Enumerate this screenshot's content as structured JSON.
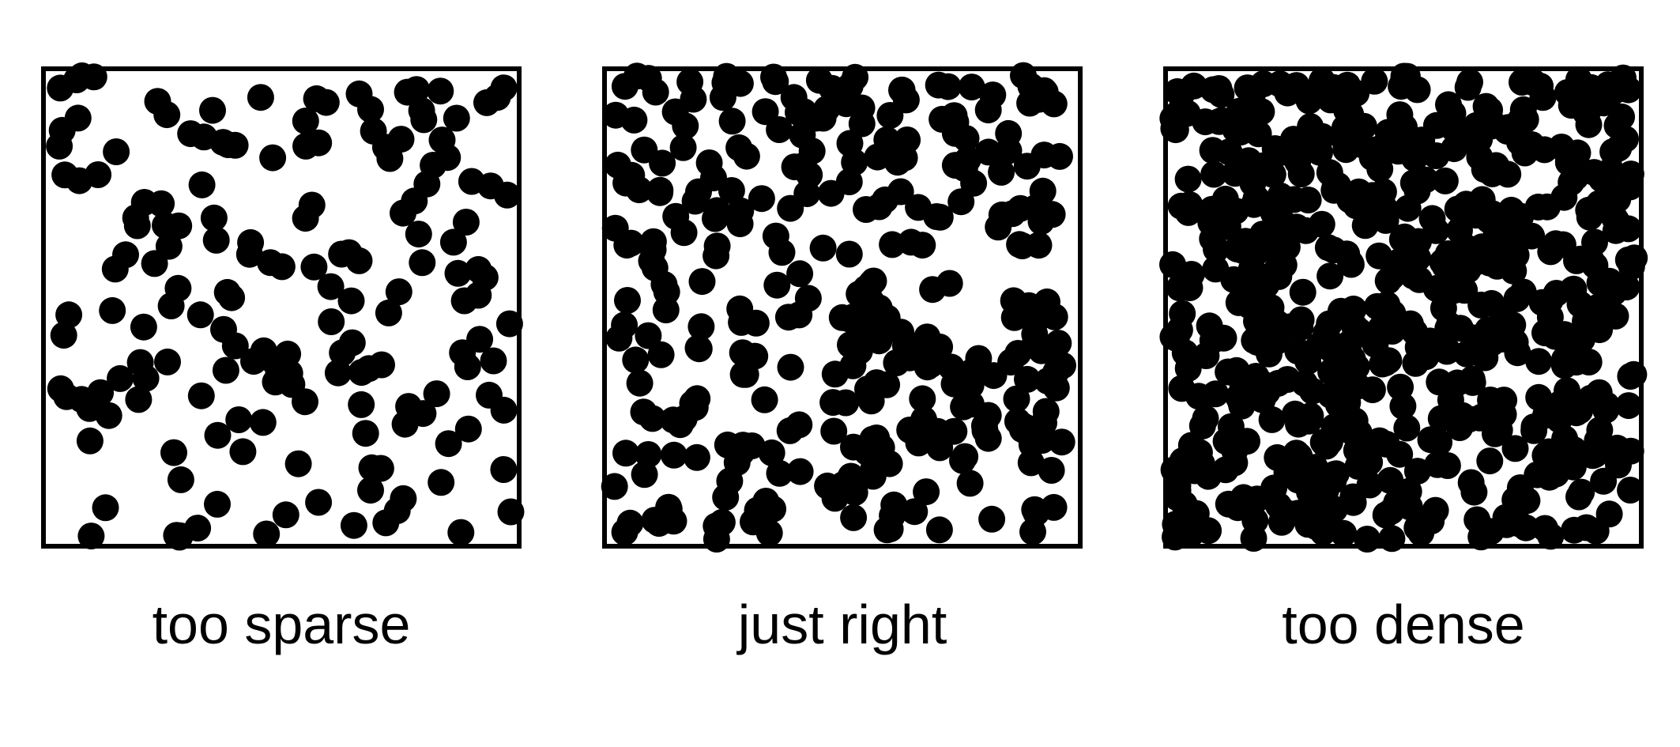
{
  "colors": {
    "ink": "#000000",
    "background": "#ffffff"
  },
  "panels": [
    {
      "id": "sparse",
      "label": "too sparse",
      "particle_count": 170,
      "seed": 11
    },
    {
      "id": "right",
      "label": "just right",
      "particle_count": 330,
      "seed": 29
    },
    {
      "id": "dense",
      "label": "too dense",
      "particle_count": 620,
      "seed": 47
    }
  ]
}
